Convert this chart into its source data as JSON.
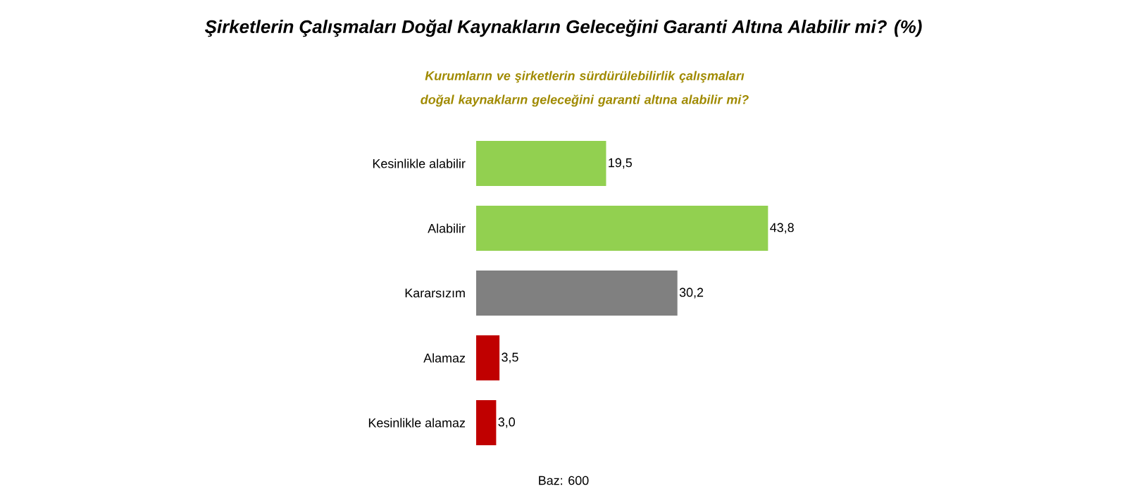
{
  "chart_data": {
    "type": "bar",
    "orientation": "horizontal",
    "title": "Şirketlerin Çalışmaları Doğal Kaynakların Geleceğini Garanti Altına Alabilir mi? (%)",
    "subtitle": "Kurumların ve şirketlerin sürdürülebilirlik çalışmaları doğal kaynakların geleceğini garanti altına alabilir mi?",
    "categories": [
      "Kesinlikle alabilir",
      "Alabilir",
      "Kararsızım",
      "Alamaz",
      "Kesinlikle alamaz"
    ],
    "values": [
      19.5,
      43.8,
      30.2,
      3.5,
      3.0
    ],
    "value_labels": [
      "19,5",
      "43,8",
      "30,2",
      "3,5",
      "3,0"
    ],
    "colors": [
      "#92d050",
      "#92d050",
      "#808080",
      "#c00000",
      "#c00000"
    ],
    "annotations": [
      "Baz: 600"
    ]
  }
}
